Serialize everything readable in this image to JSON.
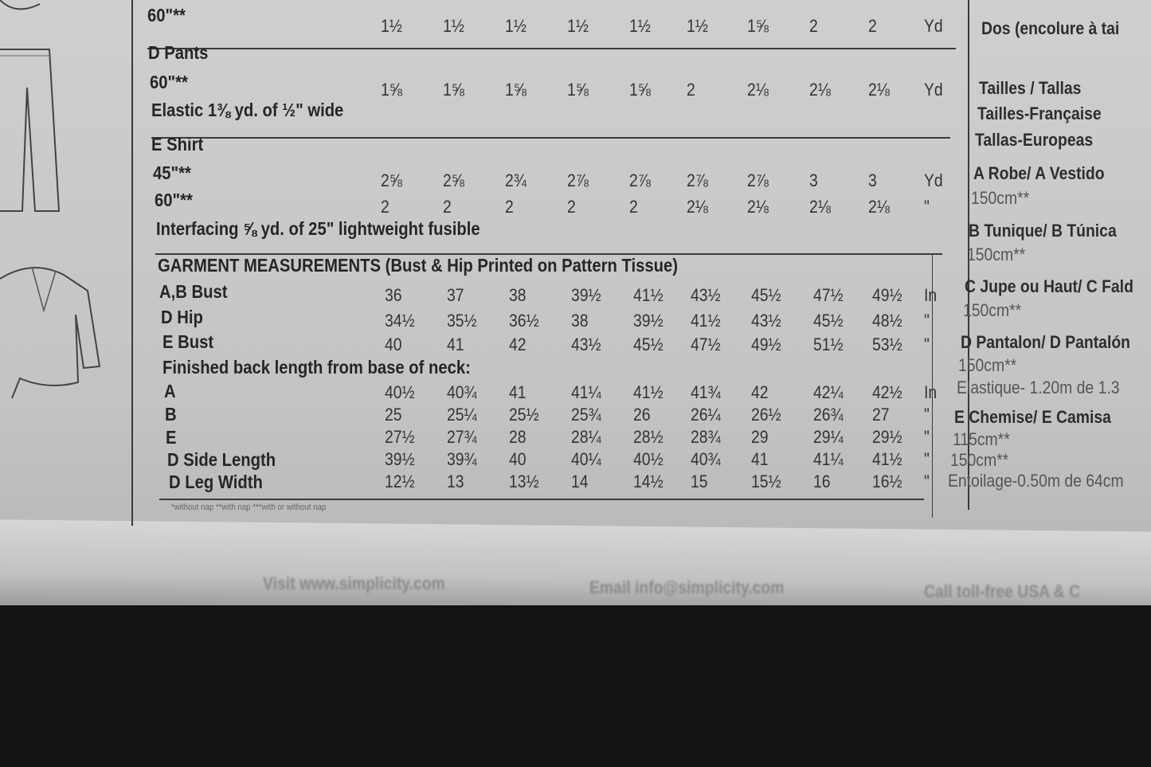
{
  "table": {
    "rows": [
      {
        "label": "60\"**",
        "values": [
          "1½",
          "1½",
          "1½",
          "1½",
          "1½",
          "1½",
          "1⅝",
          "2",
          "2"
        ],
        "unit": "Yd"
      },
      {
        "label": "D Pants"
      },
      {
        "label": "60\"**",
        "values": [
          "1⅝",
          "1⅝",
          "1⅝",
          "1⅝",
          "1⅝",
          "2",
          "2⅛",
          "2⅛",
          "2⅛"
        ],
        "unit": "Yd"
      },
      {
        "label": "Elastic 1⅜ yd. of ½\" wide"
      },
      {
        "label": "E Shirt"
      },
      {
        "label": "45\"**",
        "values": [
          "2⅝",
          "2⅝",
          "2¾",
          "2⅞",
          "2⅞",
          "2⅞",
          "2⅞",
          "3",
          "3"
        ],
        "unit": "Yd"
      },
      {
        "label": "60\"**",
        "values": [
          "2",
          "2",
          "2",
          "2",
          "2",
          "2⅛",
          "2⅛",
          "2⅛",
          "2⅛"
        ],
        "unit": "\""
      },
      {
        "label": "Interfacing ⅝ yd. of 25\" lightweight fusible"
      },
      {
        "label": "GARMENT MEASUREMENTS (Bust & Hip Printed on Pattern Tissue)"
      },
      {
        "label": "A,B Bust",
        "values": [
          "36",
          "37",
          "38",
          "39½",
          "41½",
          "43½",
          "45½",
          "47½",
          "49½"
        ],
        "unit": "In"
      },
      {
        "label": "D Hip",
        "values": [
          "34½",
          "35½",
          "36½",
          "38",
          "39½",
          "41½",
          "43½",
          "45½",
          "48½"
        ],
        "unit": "\""
      },
      {
        "label": "E Bust",
        "values": [
          "40",
          "41",
          "42",
          "43½",
          "45½",
          "47½",
          "49½",
          "51½",
          "53½"
        ],
        "unit": "\""
      },
      {
        "label": "Finished back length from base of neck:"
      },
      {
        "label": "A",
        "values": [
          "40½",
          "40¾",
          "41",
          "41¼",
          "41½",
          "41¾",
          "42",
          "42¼",
          "42½"
        ],
        "unit": "In"
      },
      {
        "label": "B",
        "values": [
          "25",
          "25¼",
          "25½",
          "25¾",
          "26",
          "26¼",
          "26½",
          "26¾",
          "27"
        ],
        "unit": "\""
      },
      {
        "label": "E",
        "values": [
          "27½",
          "27¾",
          "28",
          "28¼",
          "28½",
          "28¾",
          "29",
          "29¼",
          "29½"
        ],
        "unit": "\""
      },
      {
        "label": "D Side Length",
        "values": [
          "39½",
          "39¾",
          "40",
          "40¼",
          "40½",
          "40¾",
          "41",
          "41¼",
          "41½"
        ],
        "unit": "\""
      },
      {
        "label": "D Leg Width",
        "values": [
          "12½",
          "13",
          "13½",
          "14",
          "14½",
          "15",
          "15½",
          "16",
          "16½"
        ],
        "unit": "\""
      }
    ]
  },
  "footnote": "*without nap   **with nap   ***with or without nap",
  "right_column": [
    "Dos (encolure à tai",
    "Tailles / Tallas",
    "Tailles-Française",
    "Tallas-Europeas",
    "A Robe/ A Vestido",
    "150cm**",
    "B Tunique/ B Túnica",
    "150cm**",
    "C Jupe ou Haut/ C Fald",
    "150cm**",
    "D Pantalon/ D Pantalón",
    "150cm**",
    "Elastique- 1.20m de 1.3",
    "E Chemise/ E Camisa",
    "115cm**",
    "150cm**",
    "Entoilage-0.50m de 64cm"
  ],
  "bottom_strip": [
    "Visit www.simplicity.com",
    "Email info@simplicity.com",
    "Call toll-free USA & C"
  ]
}
